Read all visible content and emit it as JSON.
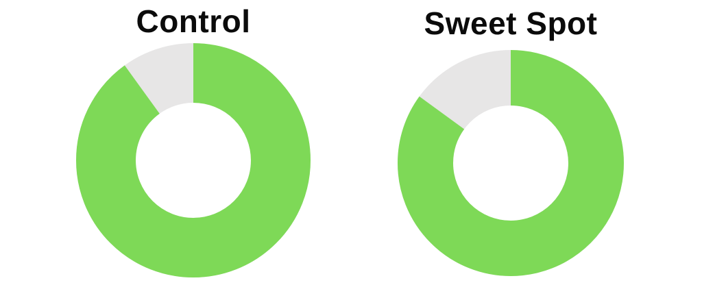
{
  "chart_data": [
    {
      "type": "pie",
      "subtype": "donut",
      "title": "Control",
      "values": [
        90,
        10
      ],
      "colors": [
        "#7ED957",
        "#E7E6E6"
      ],
      "start_angle_deg": 0,
      "direction": "clockwise",
      "inner_radius_ratio": 0.49,
      "legend": false,
      "data_labels": false
    },
    {
      "type": "pie",
      "subtype": "donut",
      "title": "Sweet Spot",
      "values": [
        85,
        15
      ],
      "colors": [
        "#7ED957",
        "#E7E6E6"
      ],
      "start_angle_deg": 0,
      "direction": "clockwise",
      "inner_radius_ratio": 0.51,
      "legend": false,
      "data_labels": false
    }
  ],
  "page": {
    "background_color": "#ffffff",
    "title_color": "#0b0b0b"
  }
}
